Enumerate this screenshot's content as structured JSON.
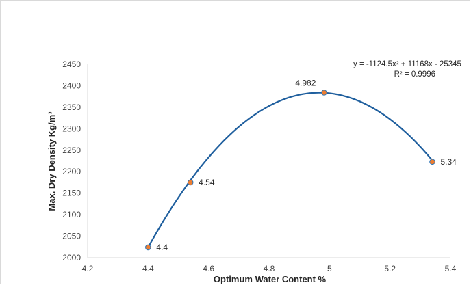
{
  "chart_data": {
    "type": "scatter",
    "title": "",
    "xlabel": "Optimum Water Content %",
    "ylabel": "Max. Dry Density Kg/m³",
    "xlim": [
      4.2,
      5.4
    ],
    "ylim": [
      2000,
      2450
    ],
    "x_ticks": [
      "4.2",
      "4.4",
      "4.6",
      "4.8",
      "5",
      "5.2",
      "5.4"
    ],
    "y_ticks": [
      "2000",
      "2050",
      "2100",
      "2150",
      "2200",
      "2250",
      "2300",
      "2350",
      "2400",
      "2450"
    ],
    "grid": false,
    "series": [
      {
        "x": [
          4.4,
          4.54,
          4.982,
          5.34
        ],
        "y": [
          2024,
          2175,
          2384,
          2223
        ],
        "point_labels": [
          "4.4",
          "4.54",
          "4.982",
          "5.34"
        ],
        "marker_color": "#ed7d31",
        "marker_edge_color": "#2e75b6"
      }
    ],
    "trendline": {
      "type": "polynomial-2",
      "coefficients": [
        -1124.5,
        11168,
        -25345
      ],
      "equation": "y = -1124.5x² + 11168x - 25345",
      "r_squared": "R² = 0.9996",
      "color": "#1f5f9e"
    }
  }
}
